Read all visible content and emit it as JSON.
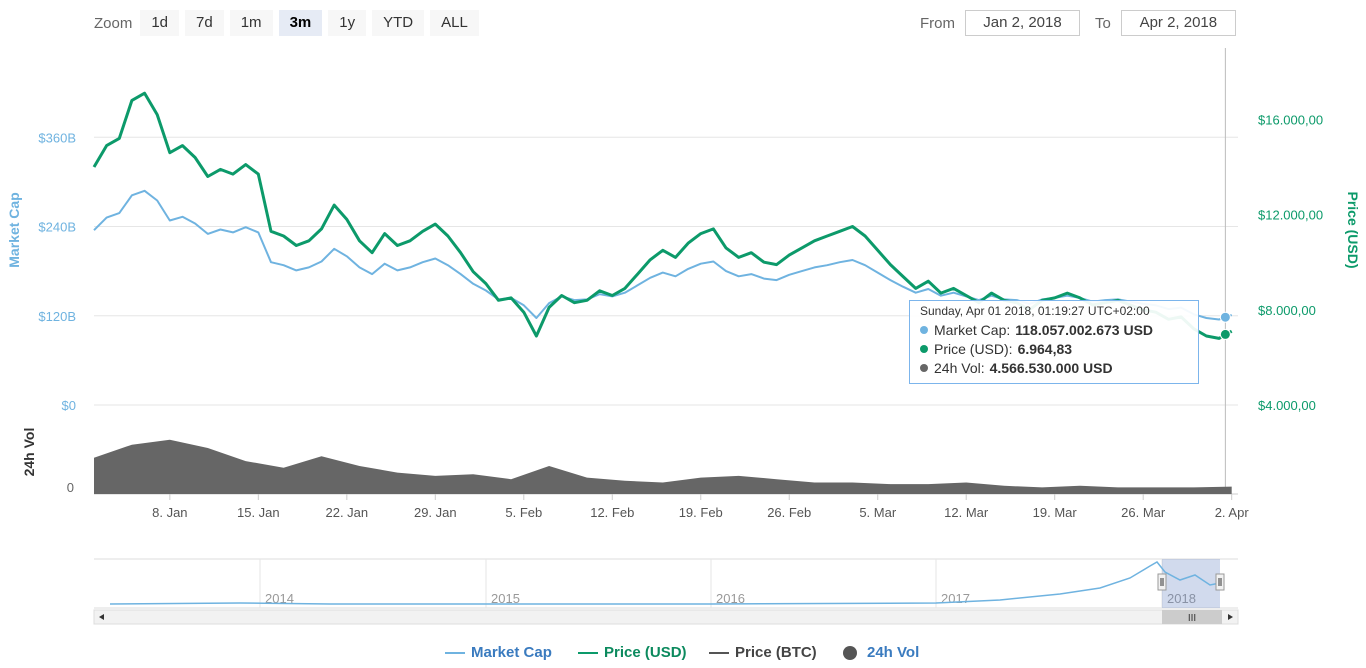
{
  "zoom": {
    "label": "Zoom",
    "buttons": [
      "1d",
      "7d",
      "1m",
      "3m",
      "1y",
      "YTD",
      "ALL"
    ],
    "active": "3m"
  },
  "range": {
    "from_label": "From",
    "from_value": "Jan 2, 2018",
    "to_label": "To",
    "to_value": "Apr 2, 2018"
  },
  "tooltip": {
    "header": "Sunday, Apr 01 2018, 01:19:27 UTC+02:00",
    "rows": [
      {
        "label": "Market Cap:",
        "value": "118.057.002.673 USD",
        "color": "#6fb3e0"
      },
      {
        "label": "Price (USD):",
        "value": "6.964,83",
        "color": "#0c9a6a"
      },
      {
        "label": "24h Vol:",
        "value": "4.566.530.000 USD",
        "color": "#666666"
      }
    ]
  },
  "legend": [
    {
      "label": "Market Cap",
      "color": "#6fb3e0",
      "symbol": "line"
    },
    {
      "label": "Price (USD)",
      "color": "#0c9a6a",
      "symbol": "line"
    },
    {
      "label": "Price (BTC)",
      "color": "#555555",
      "symbol": "line"
    },
    {
      "label": "24h Vol",
      "color": "#555555",
      "symbol": "dot"
    }
  ],
  "navigator": {
    "year_labels": [
      "2014",
      "2015",
      "2016",
      "2017",
      "2018"
    ],
    "scrollbar_grip": "III"
  },
  "chart_data": {
    "type": "line",
    "x_tick_labels": [
      "8. Jan",
      "15. Jan",
      "22. Jan",
      "29. Jan",
      "5. Feb",
      "12. Feb",
      "19. Feb",
      "26. Feb",
      "5. Mar",
      "12. Mar",
      "19. Mar",
      "26. Mar",
      "2. Apr"
    ],
    "x_tick_days": [
      6,
      13,
      20,
      27,
      34,
      41,
      48,
      55,
      62,
      69,
      76,
      83,
      90
    ],
    "x_range_days": [
      0,
      90.5
    ],
    "x_origin": "Jan 2, 2018",
    "left_axis": {
      "title": "Market Cap",
      "ticks": [
        "$0",
        "$120B",
        "$240B",
        "$360B"
      ],
      "tick_values": [
        0,
        120,
        240,
        360
      ],
      "unit": "billion USD",
      "color": "#6fb3e0",
      "range": [
        0,
        480
      ]
    },
    "right_axis": {
      "title": "Price (USD)",
      "ticks": [
        "$4.000,00",
        "$8.000,00",
        "$12.000,00",
        "$16.000,00"
      ],
      "tick_values": [
        4000,
        8000,
        12000,
        16000
      ],
      "color": "#0c9a6a",
      "range": [
        4000,
        19000
      ]
    },
    "volume_axis": {
      "title": "24h Vol",
      "ticks": [
        "0"
      ]
    },
    "series": [
      {
        "name": "Price (USD)",
        "axis": "right",
        "color": "#0c9a6a",
        "x": [
          0,
          1,
          2,
          3,
          4,
          5,
          6,
          7,
          8,
          9,
          10,
          11,
          12,
          13,
          14,
          15,
          16,
          17,
          18,
          19,
          20,
          21,
          22,
          23,
          24,
          25,
          26,
          27,
          28,
          29,
          30,
          31,
          32,
          33,
          34,
          35,
          36,
          37,
          38,
          39,
          40,
          41,
          42,
          43,
          44,
          45,
          46,
          47,
          48,
          49,
          50,
          51,
          52,
          53,
          54,
          55,
          56,
          57,
          58,
          59,
          60,
          61,
          62,
          63,
          64,
          65,
          66,
          67,
          68,
          69,
          70,
          71,
          72,
          73,
          74,
          75,
          76,
          77,
          78,
          79,
          80,
          81,
          82,
          83,
          84,
          85,
          86,
          87,
          88,
          89,
          90
        ],
        "values": [
          14000,
          14900,
          15200,
          16800,
          17100,
          16200,
          14600,
          14900,
          14400,
          13600,
          13900,
          13700,
          14100,
          13700,
          11300,
          11100,
          10700,
          10900,
          11400,
          12400,
          11800,
          10900,
          10400,
          11200,
          10700,
          10900,
          11300,
          11600,
          11100,
          10400,
          9600,
          9100,
          8400,
          8500,
          7900,
          6900,
          8100,
          8600,
          8300,
          8400,
          8800,
          8600,
          8900,
          9500,
          10100,
          10500,
          10200,
          10800,
          11200,
          11400,
          10600,
          10200,
          10400,
          10000,
          9900,
          10300,
          10600,
          10900,
          11100,
          11300,
          11500,
          11100,
          10500,
          9900,
          9400,
          8900,
          9200,
          8700,
          8900,
          8600,
          8300,
          8700,
          8400,
          8300,
          8000,
          8400,
          8500,
          8700,
          8500,
          8200,
          8300,
          8400,
          8200,
          8000,
          7900,
          7600,
          7700,
          7200,
          6900,
          6800,
          7100
        ]
      },
      {
        "name": "Market Cap",
        "axis": "left",
        "color": "#6fb3e0",
        "x": [
          0,
          1,
          2,
          3,
          4,
          5,
          6,
          7,
          8,
          9,
          10,
          11,
          12,
          13,
          14,
          15,
          16,
          17,
          18,
          19,
          20,
          21,
          22,
          23,
          24,
          25,
          26,
          27,
          28,
          29,
          30,
          31,
          32,
          33,
          34,
          35,
          36,
          37,
          38,
          39,
          40,
          41,
          42,
          43,
          44,
          45,
          46,
          47,
          48,
          49,
          50,
          51,
          52,
          53,
          54,
          55,
          56,
          57,
          58,
          59,
          60,
          61,
          62,
          63,
          64,
          65,
          66,
          67,
          68,
          69,
          70,
          71,
          72,
          73,
          74,
          75,
          76,
          77,
          78,
          79,
          80,
          81,
          82,
          83,
          84,
          85,
          86,
          87,
          88,
          89,
          90
        ],
        "values": [
          235,
          252,
          258,
          282,
          288,
          275,
          248,
          253,
          244,
          230,
          236,
          232,
          239,
          232,
          192,
          188,
          181,
          185,
          193,
          210,
          200,
          185,
          176,
          190,
          181,
          185,
          192,
          197,
          188,
          176,
          163,
          154,
          142,
          144,
          134,
          117,
          137,
          146,
          141,
          142,
          149,
          146,
          151,
          161,
          171,
          178,
          173,
          183,
          190,
          193,
          180,
          173,
          176,
          170,
          168,
          175,
          180,
          185,
          188,
          192,
          195,
          188,
          178,
          168,
          159,
          151,
          156,
          147,
          151,
          146,
          141,
          147,
          142,
          141,
          136,
          142,
          144,
          147,
          144,
          139,
          141,
          142,
          139,
          136,
          134,
          129,
          131,
          122,
          117,
          115,
          121
        ]
      },
      {
        "name": "24h Vol",
        "axis": "volume",
        "color": "#555555",
        "unit": "billion USD",
        "volume_range": [
          0,
          45
        ],
        "x": [
          0,
          3,
          6,
          9,
          12,
          15,
          18,
          21,
          24,
          27,
          30,
          33,
          36,
          39,
          42,
          45,
          48,
          51,
          54,
          57,
          60,
          63,
          66,
          69,
          72,
          75,
          78,
          81,
          84,
          87,
          90
        ],
        "values": [
          22,
          30,
          33,
          28,
          20,
          16,
          23,
          17,
          13,
          11,
          12,
          9,
          17,
          10,
          8,
          7,
          10,
          11,
          9,
          7,
          7,
          6,
          6,
          7,
          5,
          4,
          5,
          4,
          4,
          4,
          4.5
        ]
      }
    ]
  }
}
